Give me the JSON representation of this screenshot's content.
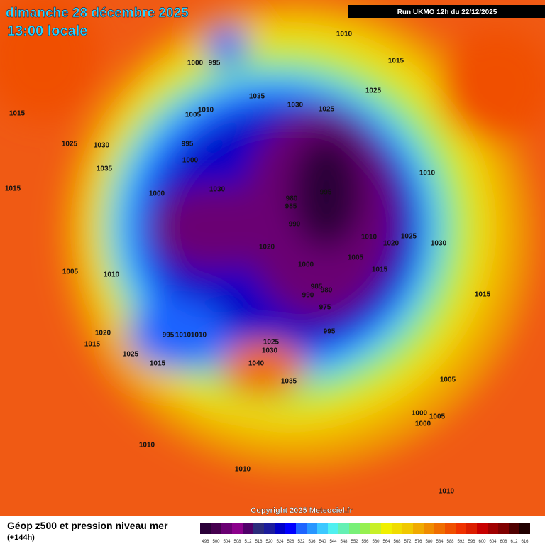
{
  "header": {
    "title": "dimanche 28 décembre 2025",
    "subtitle": "13:00 locale",
    "run": "Run UKMO 12h du 22/12/2025"
  },
  "copyright": "Copyright 2025 Meteociel.fr",
  "legend": {
    "title": "Géop z500 et pression niveau mer",
    "lead": "(+144h)",
    "values": [
      496,
      500,
      504,
      508,
      512,
      516,
      520,
      524,
      528,
      532,
      536,
      540,
      544,
      548,
      552,
      556,
      560,
      564,
      568,
      572,
      576,
      580,
      584,
      588,
      592,
      596,
      600,
      604,
      608,
      612,
      616
    ],
    "colors": [
      "#2a0038",
      "#46004f",
      "#6a0073",
      "#8c008c",
      "#50006a",
      "#2c2c7c",
      "#1c1c9c",
      "#0000c8",
      "#0000ff",
      "#1e64ff",
      "#2896ff",
      "#3cc8ff",
      "#50f0f0",
      "#64f0b4",
      "#78f078",
      "#96f050",
      "#c8f028",
      "#f0f000",
      "#f0dc00",
      "#f0c800",
      "#f0aa00",
      "#f08c00",
      "#f06e00",
      "#f05000",
      "#f03200",
      "#dc1e00",
      "#c80000",
      "#a00000",
      "#800000",
      "#500000",
      "#200000"
    ]
  },
  "pressure_labels": [
    "1010",
    "1000",
    "995",
    "1015",
    "1035",
    "1030",
    "1025",
    "1025",
    "1005",
    "1010",
    "1015",
    "1025",
    "1030",
    "995",
    "1000",
    "1035",
    "1010",
    "1015",
    "1000",
    "1030",
    "980",
    "985",
    "995",
    "990",
    "1010",
    "1025",
    "1020",
    "1030",
    "1020",
    "1005",
    "1000",
    "1015",
    "1005",
    "1010",
    "985",
    "980",
    "990",
    "975",
    "1015",
    "995",
    "995",
    "1010",
    "1010",
    "1020",
    "1015",
    "1025",
    "1030",
    "1025",
    "1040",
    "1015",
    "1035",
    "1005",
    "1000",
    "1005",
    "1000",
    "1010",
    "1010",
    "1010"
  ]
}
